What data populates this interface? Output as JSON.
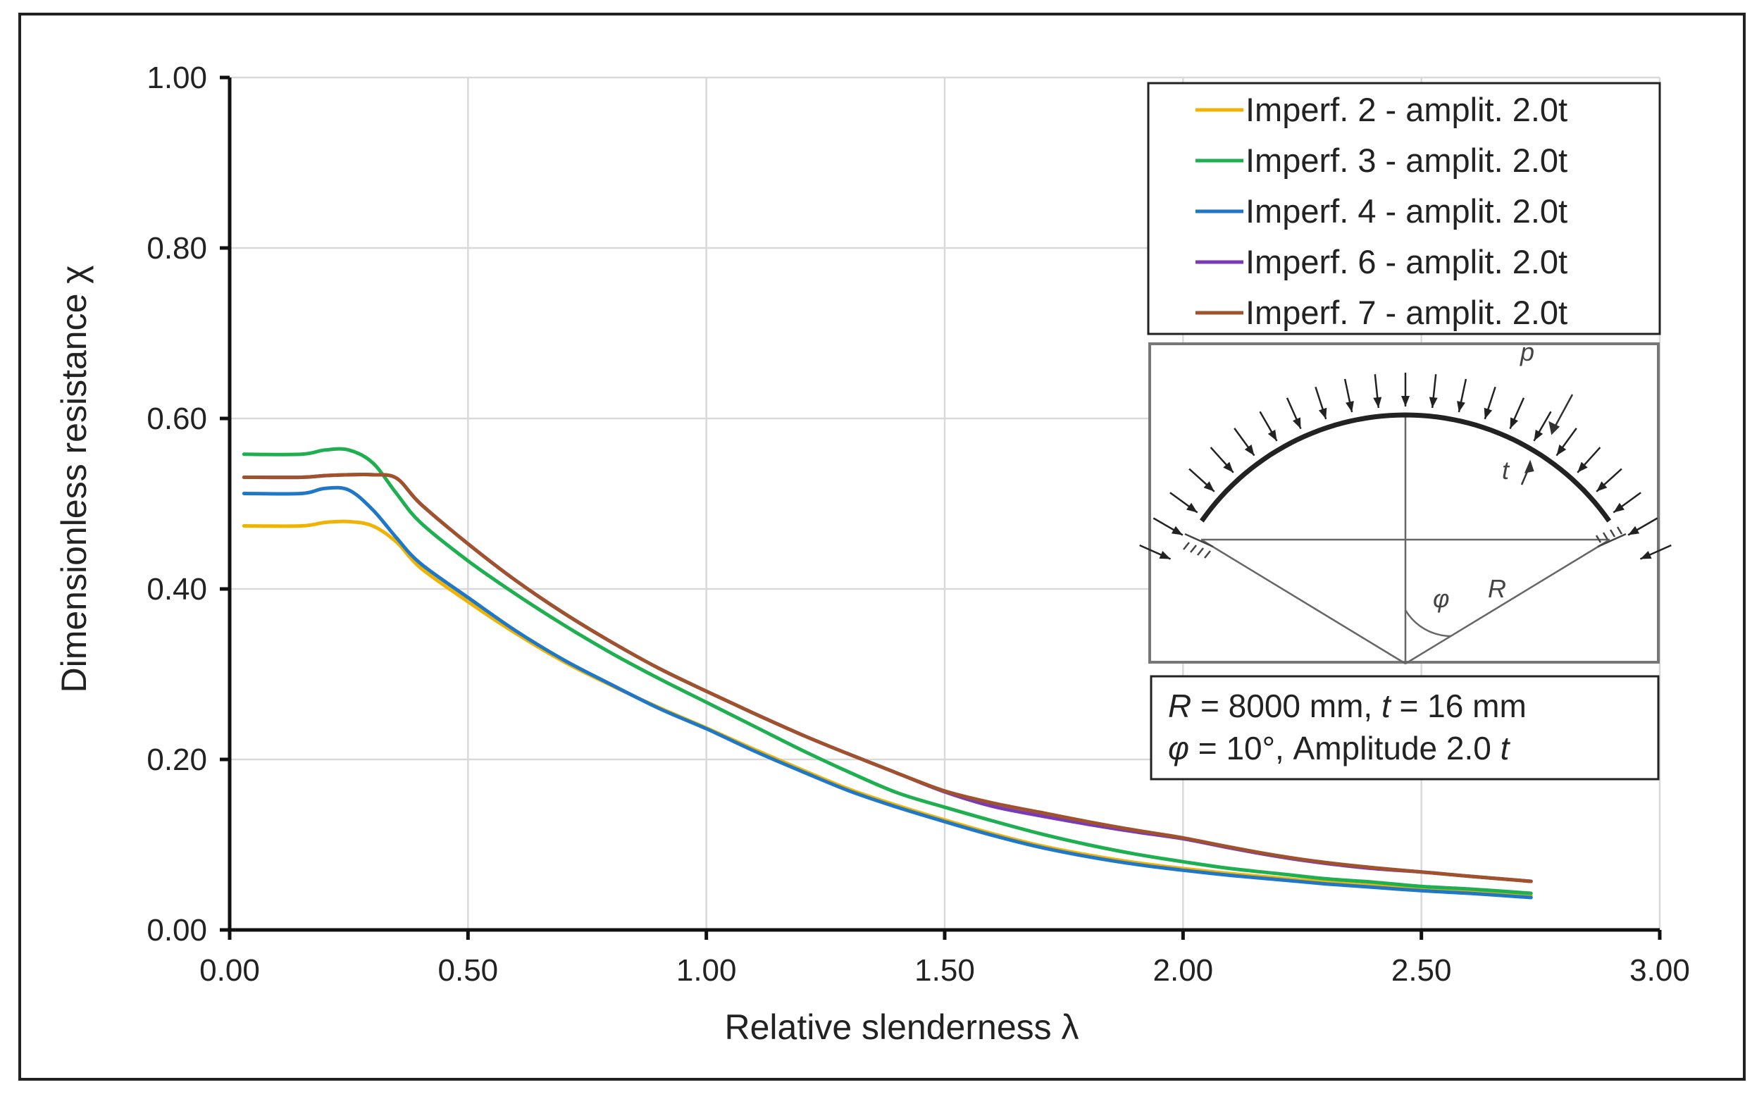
{
  "chart_data": {
    "type": "line",
    "xlabel": "Relative slenderness   λ",
    "ylabel": "Dimensionless resistance  χ",
    "xlim": [
      0,
      3
    ],
    "ylim": [
      0,
      1
    ],
    "xticks": [
      0,
      0.5,
      1,
      1.5,
      2,
      2.5,
      3
    ],
    "xtick_labels": [
      "0.00",
      "0.50",
      "1.00",
      "1.50",
      "2.00",
      "2.50",
      "3.00"
    ],
    "yticks": [
      0,
      0.2,
      0.4,
      0.6,
      0.8,
      1.0
    ],
    "ytick_labels": [
      "0.00",
      "0.20",
      "0.40",
      "0.60",
      "0.80",
      "1.00"
    ],
    "grid": true,
    "legend_position": "top-right",
    "series": [
      {
        "name": "Imperf. 2 - amplit. 2.0t",
        "color": "#f0b400",
        "x": [
          0.03,
          0.15,
          0.2,
          0.25,
          0.3,
          0.35,
          0.4,
          0.5,
          0.6,
          0.7,
          0.8,
          0.9,
          1.0,
          1.1,
          1.2,
          1.3,
          1.4,
          1.5,
          1.6,
          1.7,
          1.8,
          1.9,
          2.0,
          2.1,
          2.2,
          2.3,
          2.4,
          2.5,
          2.6,
          2.73
        ],
        "y": [
          0.474,
          0.474,
          0.478,
          0.479,
          0.474,
          0.455,
          0.425,
          0.385,
          0.348,
          0.315,
          0.287,
          0.261,
          0.237,
          0.212,
          0.188,
          0.165,
          0.146,
          0.129,
          0.113,
          0.099,
          0.088,
          0.079,
          0.072,
          0.066,
          0.061,
          0.056,
          0.052,
          0.048,
          0.045,
          0.04
        ]
      },
      {
        "name": "Imperf. 3 - amplit. 2.0t",
        "color": "#1eb050",
        "x": [
          0.03,
          0.15,
          0.2,
          0.25,
          0.3,
          0.35,
          0.4,
          0.5,
          0.6,
          0.7,
          0.8,
          0.9,
          1.0,
          1.1,
          1.2,
          1.3,
          1.4,
          1.5,
          1.6,
          1.7,
          1.8,
          1.9,
          2.0,
          2.1,
          2.2,
          2.3,
          2.4,
          2.5,
          2.6,
          2.73
        ],
        "y": [
          0.558,
          0.558,
          0.563,
          0.563,
          0.548,
          0.512,
          0.478,
          0.433,
          0.394,
          0.358,
          0.325,
          0.295,
          0.267,
          0.239,
          0.211,
          0.185,
          0.161,
          0.144,
          0.128,
          0.113,
          0.1,
          0.089,
          0.08,
          0.072,
          0.066,
          0.06,
          0.056,
          0.051,
          0.048,
          0.043
        ]
      },
      {
        "name": "Imperf. 4 - amplit. 2.0t",
        "color": "#1f77c8",
        "x": [
          0.03,
          0.15,
          0.2,
          0.25,
          0.3,
          0.35,
          0.4,
          0.5,
          0.6,
          0.7,
          0.8,
          0.9,
          1.0,
          1.1,
          1.2,
          1.3,
          1.4,
          1.5,
          1.6,
          1.7,
          1.8,
          1.9,
          2.0,
          2.1,
          2.2,
          2.3,
          2.4,
          2.5,
          2.6,
          2.73
        ],
        "y": [
          0.512,
          0.512,
          0.518,
          0.516,
          0.493,
          0.46,
          0.43,
          0.39,
          0.351,
          0.317,
          0.288,
          0.26,
          0.236,
          0.21,
          0.186,
          0.163,
          0.144,
          0.127,
          0.111,
          0.097,
          0.086,
          0.077,
          0.07,
          0.064,
          0.059,
          0.054,
          0.05,
          0.046,
          0.043,
          0.038
        ]
      },
      {
        "name": "Imperf. 6 - amplit. 2.0t",
        "color": "#7a3ab8",
        "x": [
          0.03,
          0.15,
          0.2,
          0.25,
          0.3,
          0.35,
          0.4,
          0.5,
          0.6,
          0.7,
          0.8,
          0.9,
          1.0,
          1.1,
          1.2,
          1.3,
          1.4,
          1.5,
          1.6,
          1.7,
          1.8,
          1.9,
          2.0,
          2.1,
          2.2,
          2.3,
          2.4,
          2.5,
          2.6,
          2.73
        ],
        "y": [
          0.531,
          0.531,
          0.533,
          0.534,
          0.534,
          0.53,
          0.5,
          0.453,
          0.41,
          0.372,
          0.338,
          0.307,
          0.28,
          0.254,
          0.229,
          0.206,
          0.184,
          0.162,
          0.145,
          0.134,
          0.124,
          0.115,
          0.107,
          0.096,
          0.086,
          0.078,
          0.072,
          0.068,
          0.063,
          0.057
        ]
      },
      {
        "name": "Imperf. 7 - amplit. 2.0t",
        "color": "#a0522d",
        "x": [
          0.03,
          0.15,
          0.2,
          0.25,
          0.3,
          0.35,
          0.4,
          0.5,
          0.6,
          0.7,
          0.8,
          0.9,
          1.0,
          1.1,
          1.2,
          1.3,
          1.4,
          1.5,
          1.6,
          1.7,
          1.8,
          1.9,
          2.0,
          2.1,
          2.2,
          2.3,
          2.4,
          2.5,
          2.6,
          2.73
        ],
        "y": [
          0.531,
          0.531,
          0.533,
          0.534,
          0.534,
          0.53,
          0.5,
          0.453,
          0.41,
          0.372,
          0.338,
          0.307,
          0.28,
          0.254,
          0.229,
          0.206,
          0.184,
          0.163,
          0.149,
          0.138,
          0.127,
          0.117,
          0.108,
          0.097,
          0.087,
          0.079,
          0.073,
          0.068,
          0.063,
          0.057
        ]
      }
    ],
    "annotations": {
      "diagram_labels": {
        "pressure": "p",
        "thickness": "t",
        "angle": "φ",
        "radius": "R"
      },
      "parameters": {
        "line1": [
          {
            "text": "R",
            "style": "italic"
          },
          {
            "text": " = 8000 mm, ",
            "style": "normal"
          },
          {
            "text": "t",
            "style": "italic"
          },
          {
            "text": " = 16 mm",
            "style": "normal"
          }
        ],
        "line2": [
          {
            "text": "φ",
            "style": "italic"
          },
          {
            "text": " = 10°, Amplitude 2.0 ",
            "style": "normal"
          },
          {
            "text": "t",
            "style": "italic"
          }
        ]
      }
    }
  }
}
